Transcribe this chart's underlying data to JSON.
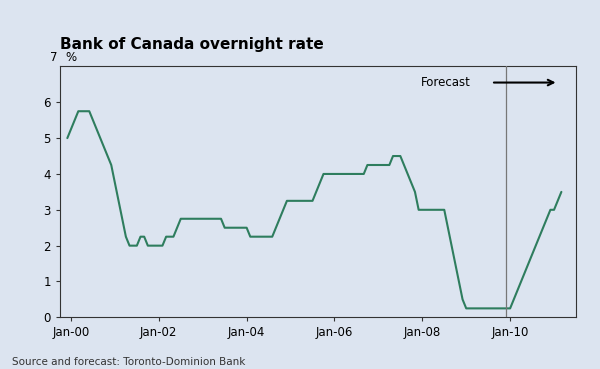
{
  "title": "Bank of Canada overnight rate",
  "ylabel_pct": "%",
  "ylabel_7": "7",
  "source": "Source and forecast: Toronto-Dominion Bank",
  "forecast_label": "Forecast",
  "background_color": "#dce4f0",
  "line_color": "#2e7d5e",
  "forecast_line_x": 2009.917,
  "xlim": [
    1999.75,
    2011.5
  ],
  "ylim": [
    0,
    7
  ],
  "yticks": [
    0,
    1,
    2,
    3,
    4,
    5,
    6
  ],
  "xtick_labels": [
    "Jan-00",
    "Jan-02",
    "Jan-04",
    "Jan-06",
    "Jan-08",
    "Jan-10"
  ],
  "xtick_positions": [
    2000,
    2002,
    2004,
    2006,
    2008,
    2010
  ],
  "dates": [
    1999.917,
    2000.0,
    2000.083,
    2000.167,
    2000.25,
    2000.333,
    2000.417,
    2000.5,
    2000.583,
    2000.667,
    2000.75,
    2000.833,
    2000.917,
    2001.0,
    2001.083,
    2001.167,
    2001.25,
    2001.333,
    2001.417,
    2001.5,
    2001.583,
    2001.667,
    2001.75,
    2001.833,
    2001.917,
    2002.0,
    2002.083,
    2002.167,
    2002.25,
    2002.333,
    2002.417,
    2002.5,
    2002.583,
    2002.667,
    2002.75,
    2002.833,
    2002.917,
    2003.0,
    2003.083,
    2003.167,
    2003.25,
    2003.333,
    2003.417,
    2003.5,
    2003.583,
    2003.667,
    2003.75,
    2003.833,
    2003.917,
    2004.0,
    2004.083,
    2004.167,
    2004.25,
    2004.333,
    2004.417,
    2004.5,
    2004.583,
    2004.667,
    2004.75,
    2004.833,
    2004.917,
    2005.0,
    2005.083,
    2005.167,
    2005.25,
    2005.333,
    2005.417,
    2005.5,
    2005.583,
    2005.667,
    2005.75,
    2005.833,
    2005.917,
    2006.0,
    2006.083,
    2006.167,
    2006.25,
    2006.333,
    2006.417,
    2006.5,
    2006.583,
    2006.667,
    2006.75,
    2006.833,
    2006.917,
    2007.0,
    2007.083,
    2007.167,
    2007.25,
    2007.333,
    2007.417,
    2007.5,
    2007.583,
    2007.667,
    2007.75,
    2007.833,
    2007.917,
    2008.0,
    2008.083,
    2008.167,
    2008.25,
    2008.333,
    2008.417,
    2008.5,
    2008.583,
    2008.667,
    2008.75,
    2008.833,
    2008.917,
    2009.0,
    2009.083,
    2009.167,
    2009.25,
    2009.333,
    2009.417,
    2009.5,
    2009.583,
    2009.667,
    2009.75,
    2009.833,
    2009.917,
    2010.0,
    2010.083,
    2010.167,
    2010.25,
    2010.333,
    2010.417,
    2010.5,
    2010.583,
    2010.667,
    2010.75,
    2010.833,
    2010.917,
    2011.0,
    2011.083,
    2011.167
  ],
  "values": [
    5.0,
    5.25,
    5.5,
    5.75,
    5.75,
    5.75,
    5.75,
    5.5,
    5.25,
    5.0,
    4.75,
    4.5,
    4.25,
    3.75,
    3.25,
    2.75,
    2.25,
    2.0,
    2.0,
    2.0,
    2.25,
    2.25,
    2.0,
    2.0,
    2.0,
    2.0,
    2.0,
    2.25,
    2.25,
    2.25,
    2.5,
    2.75,
    2.75,
    2.75,
    2.75,
    2.75,
    2.75,
    2.75,
    2.75,
    2.75,
    2.75,
    2.75,
    2.75,
    2.5,
    2.5,
    2.5,
    2.5,
    2.5,
    2.5,
    2.5,
    2.25,
    2.25,
    2.25,
    2.25,
    2.25,
    2.25,
    2.25,
    2.5,
    2.75,
    3.0,
    3.25,
    3.25,
    3.25,
    3.25,
    3.25,
    3.25,
    3.25,
    3.25,
    3.5,
    3.75,
    4.0,
    4.0,
    4.0,
    4.0,
    4.0,
    4.0,
    4.0,
    4.0,
    4.0,
    4.0,
    4.0,
    4.0,
    4.25,
    4.25,
    4.25,
    4.25,
    4.25,
    4.25,
    4.25,
    4.5,
    4.5,
    4.5,
    4.25,
    4.0,
    3.75,
    3.5,
    3.0,
    3.0,
    3.0,
    3.0,
    3.0,
    3.0,
    3.0,
    3.0,
    2.5,
    2.0,
    1.5,
    1.0,
    0.5,
    0.25,
    0.25,
    0.25,
    0.25,
    0.25,
    0.25,
    0.25,
    0.25,
    0.25,
    0.25,
    0.25,
    0.25,
    0.25,
    0.5,
    0.75,
    1.0,
    1.25,
    1.5,
    1.75,
    2.0,
    2.25,
    2.5,
    2.75,
    3.0,
    3.0,
    3.25,
    3.5
  ]
}
